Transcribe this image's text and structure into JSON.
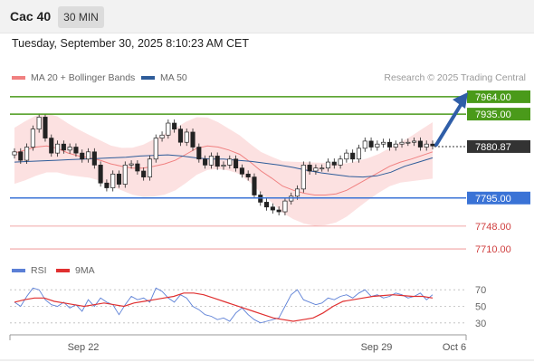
{
  "header": {
    "instrument": "Cac 40",
    "timeframe": "30 MIN"
  },
  "datetime": "Tuesday, September 30, 2025 8:10:23 AM CET",
  "legend": {
    "ma20": {
      "label": "MA 20 + Bollinger Bands",
      "color": "#f08080"
    },
    "ma50": {
      "label": "MA 50",
      "color": "#2e5c99"
    }
  },
  "credit": "Research © 2025 Trading Central",
  "levels": [
    {
      "label": "7964.00",
      "value": 7964,
      "color": "#4a9a1a",
      "style": "bar"
    },
    {
      "label": "7935.00",
      "value": 7935,
      "color": "#4a9a1a",
      "style": "bar"
    },
    {
      "label": "7880.87",
      "value": 7880.87,
      "color": "#333333",
      "style": "current"
    },
    {
      "label": "7795.00",
      "value": 7795,
      "color": "#3a73d6",
      "style": "bar"
    },
    {
      "label": "7748.00",
      "value": 7748,
      "color": "#d04040",
      "style": "text"
    },
    {
      "label": "7710.00",
      "value": 7710,
      "color": "#d04040",
      "style": "text"
    }
  ],
  "rsi_legend": {
    "rsi": {
      "label": "RSI",
      "color": "#5b7fd6"
    },
    "ma9": {
      "label": "9MA",
      "color": "#e03030"
    }
  },
  "rsi_levels": [
    "70",
    "50",
    "30"
  ],
  "x_labels": [
    "Sep 22",
    "Sep 29",
    "Oct 6"
  ],
  "chart_data": {
    "type": "candlestick",
    "y_range": [
      7695,
      7985
    ],
    "series": [
      {
        "name": "Price",
        "close_values": [
          7872,
          7858,
          7880,
          7910,
          7930,
          7895,
          7870,
          7885,
          7875,
          7880,
          7870,
          7860,
          7872,
          7850,
          7820,
          7812,
          7835,
          7818,
          7850,
          7852,
          7840,
          7830,
          7860,
          7895,
          7900,
          7920,
          7910,
          7888,
          7905,
          7880,
          7860,
          7850,
          7865,
          7848,
          7850,
          7860,
          7845,
          7835,
          7830,
          7800,
          7788,
          7780,
          7775,
          7772,
          7790,
          7798,
          7810,
          7850,
          7840,
          7845,
          7845,
          7855,
          7850,
          7860,
          7870,
          7860,
          7878,
          7890,
          7880,
          7885,
          7888,
          7880,
          7885,
          7888,
          7888,
          7890,
          7880,
          7885,
          7882
        ]
      },
      {
        "name": "MA 20",
        "values": [
          7870,
          7875,
          7880,
          7882,
          7878,
          7870,
          7865,
          7862,
          7858,
          7852,
          7848,
          7845,
          7845,
          7848,
          7852,
          7858,
          7868,
          7878,
          7882,
          7880,
          7875,
          7868,
          7855,
          7840,
          7828,
          7815,
          7808,
          7803,
          7800,
          7800,
          7802,
          7808,
          7818,
          7828,
          7838,
          7848,
          7855,
          7860,
          7866,
          7872
        ]
      },
      {
        "name": "MA 50",
        "values": [
          7855,
          7856,
          7857,
          7858,
          7859,
          7860,
          7861,
          7862,
          7863,
          7865,
          7866,
          7867,
          7865,
          7862,
          7860,
          7860,
          7858,
          7856,
          7853,
          7850,
          7846,
          7841,
          7837,
          7834,
          7831,
          7830,
          7832,
          7838,
          7848,
          7855,
          7862
        ]
      }
    ],
    "rsi": {
      "levels": [
        70,
        50,
        30
      ],
      "rsi_values": [
        55,
        50,
        62,
        72,
        70,
        58,
        52,
        50,
        55,
        48,
        52,
        44,
        58,
        50,
        60,
        55,
        52,
        40,
        52,
        62,
        58,
        60,
        55,
        72,
        68,
        60,
        55,
        64,
        60,
        50,
        46,
        40,
        38,
        34,
        36,
        32,
        42,
        48,
        40,
        34,
        30,
        32,
        34,
        36,
        50,
        64,
        70,
        58,
        55,
        52,
        54,
        60,
        58,
        62,
        64,
        60,
        66,
        70,
        62,
        64,
        60,
        62,
        66,
        64,
        60,
        62,
        66,
        58,
        64
      ],
      "ma9_values": [
        55,
        58,
        60,
        60,
        56,
        54,
        52,
        50,
        52,
        54,
        52,
        50,
        54,
        56,
        58,
        60,
        62,
        66,
        66,
        64,
        60,
        56,
        52,
        48,
        44,
        40,
        36,
        34,
        32,
        34,
        36,
        42,
        50,
        56,
        58,
        60,
        62,
        63,
        64,
        63,
        62,
        62,
        60
      ]
    }
  }
}
